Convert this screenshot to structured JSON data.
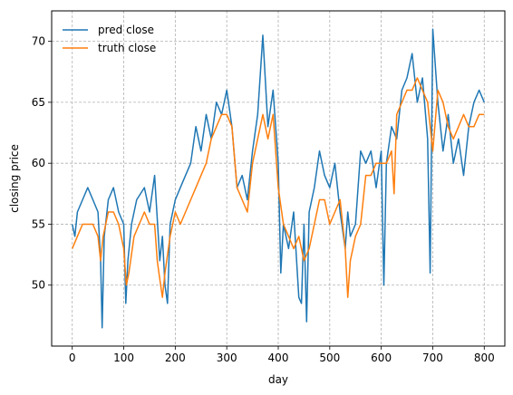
{
  "chart_data": {
    "type": "line",
    "title": "",
    "xlabel": "day",
    "ylabel": "closing price",
    "xlim": [
      -40,
      840
    ],
    "ylim": [
      45,
      72.5
    ],
    "xticks": [
      0,
      100,
      200,
      300,
      400,
      500,
      600,
      700,
      800
    ],
    "yticks": [
      50,
      55,
      60,
      65,
      70
    ],
    "grid": true,
    "grid_style": "dashed",
    "legend_position": "top-left",
    "series": [
      {
        "name": "pred close",
        "color": "#1f77b4",
        "x": [
          0,
          5,
          10,
          20,
          30,
          40,
          50,
          55,
          58,
          62,
          70,
          80,
          90,
          100,
          104,
          108,
          115,
          125,
          140,
          150,
          160,
          170,
          175,
          180,
          185,
          190,
          200,
          210,
          220,
          230,
          240,
          250,
          260,
          270,
          280,
          290,
          300,
          310,
          320,
          330,
          340,
          350,
          360,
          370,
          380,
          390,
          400,
          405,
          410,
          420,
          430,
          440,
          445,
          450,
          455,
          460,
          470,
          480,
          490,
          500,
          510,
          520,
          530,
          535,
          540,
          550,
          560,
          570,
          580,
          590,
          600,
          605,
          610,
          620,
          630,
          640,
          650,
          660,
          670,
          680,
          690,
          695,
          700,
          710,
          720,
          730,
          740,
          750,
          760,
          770,
          780,
          790,
          800
        ],
        "y": [
          55,
          54,
          56,
          57,
          58,
          57,
          56,
          52,
          46.5,
          54,
          57,
          58,
          56,
          55,
          48.5,
          52,
          55,
          57,
          58,
          56,
          59,
          52,
          54,
          50,
          48.5,
          55,
          57,
          58,
          59,
          60,
          63,
          61,
          64,
          62,
          65,
          64,
          66,
          63,
          58,
          59,
          57,
          61,
          64,
          70.5,
          63,
          66,
          60,
          51,
          55,
          53,
          56,
          49,
          48.5,
          55,
          47,
          56,
          58,
          61,
          59,
          58,
          60,
          56,
          53,
          56,
          54,
          55,
          61,
          60,
          61,
          58,
          61,
          50,
          60,
          63,
          62,
          66,
          67,
          69,
          65,
          67,
          62,
          51,
          71,
          65,
          61,
          64,
          60,
          62,
          59,
          63,
          65,
          66,
          65
        ]
      },
      {
        "name": "truth close",
        "color": "#ff7f0e",
        "x": [
          0,
          10,
          20,
          30,
          40,
          50,
          55,
          60,
          70,
          80,
          90,
          100,
          105,
          110,
          120,
          130,
          140,
          150,
          160,
          165,
          170,
          175,
          180,
          190,
          200,
          210,
          220,
          230,
          240,
          250,
          260,
          270,
          280,
          290,
          300,
          310,
          320,
          330,
          340,
          350,
          360,
          370,
          380,
          390,
          400,
          410,
          420,
          430,
          440,
          450,
          460,
          470,
          480,
          490,
          500,
          510,
          520,
          530,
          535,
          540,
          550,
          560,
          570,
          580,
          590,
          600,
          610,
          620,
          625,
          630,
          640,
          650,
          660,
          670,
          680,
          690,
          700,
          710,
          720,
          730,
          740,
          750,
          760,
          770,
          780,
          790,
          800
        ],
        "y": [
          53,
          54,
          55,
          55,
          55,
          54,
          52,
          54,
          56,
          56,
          55,
          53,
          50,
          51,
          54,
          55,
          56,
          55,
          55,
          52,
          50.5,
          49,
          51,
          54,
          56,
          55,
          56,
          57,
          58,
          59,
          60,
          62,
          63,
          64,
          64,
          63,
          58,
          57,
          56,
          60,
          62,
          64,
          62,
          64,
          58,
          55,
          54,
          53,
          54,
          52,
          53,
          55,
          57,
          57,
          55,
          56,
          57,
          53,
          49,
          52,
          54,
          55,
          59,
          59,
          60,
          60,
          60,
          61,
          57.5,
          64,
          65,
          66,
          66,
          67,
          66,
          65,
          61,
          66,
          65,
          63,
          62,
          63,
          64,
          63,
          63,
          64,
          64
        ]
      }
    ]
  }
}
